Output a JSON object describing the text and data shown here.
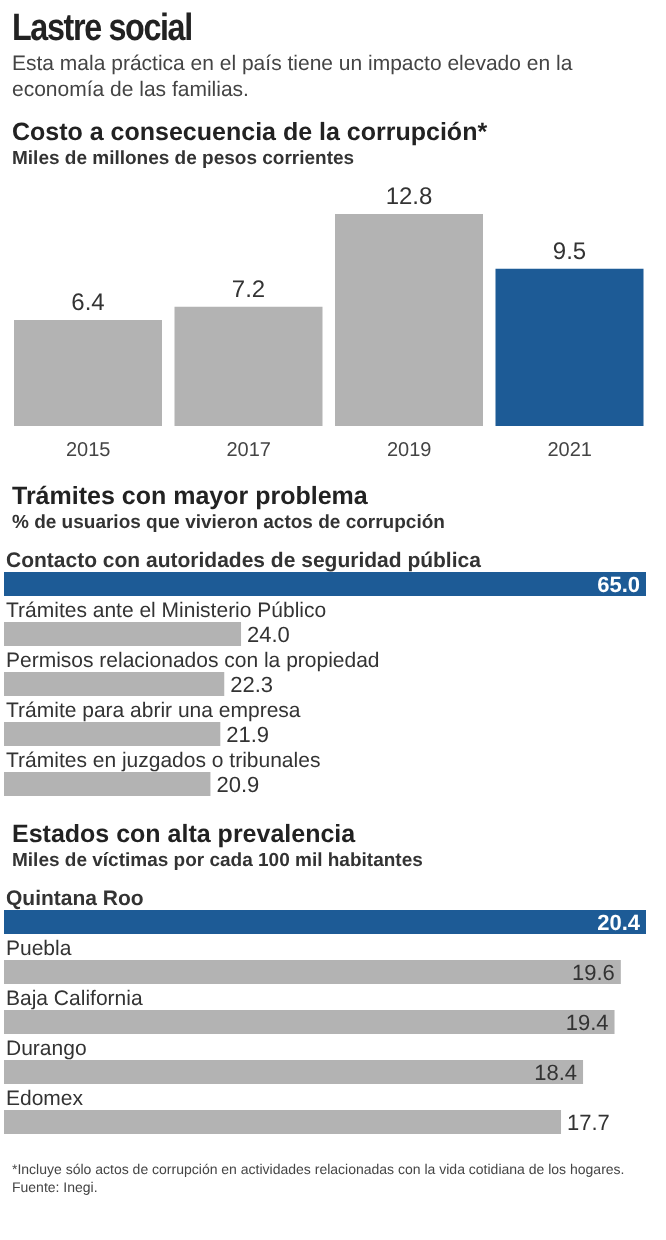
{
  "chart_data": [
    {
      "type": "bar",
      "title": "Costo a consecuencia de la corrupción*",
      "subtitle": "Miles de millones de pesos corrientes",
      "annotations": [
        "Lastre social",
        "Esta mala práctica en el país tiene un impacto elevado en la economía de las familias."
      ],
      "categories": [
        "2015",
        "2017",
        "2019",
        "2021"
      ],
      "values": [
        6.4,
        7.2,
        12.8,
        9.5
      ],
      "colors": [
        "#b3b3b3",
        "#b3b3b3",
        "#b3b3b3",
        "#1d5b96"
      ],
      "data_labels": true
    },
    {
      "type": "bar",
      "orientation": "horizontal",
      "title": "Trámites con mayor problema",
      "subtitle": "% de usuarios que vivieron actos de corrupción",
      "categories": [
        "Contacto con autoridades de seguridad pública",
        "Trámites ante el Ministerio Público",
        "Permisos relacionados con la propiedad",
        "Trámite para abrir una empresa",
        "Trámites en juzgados o tribunales"
      ],
      "values": [
        65.0,
        24.0,
        22.3,
        21.9,
        20.9
      ],
      "value_labels": [
        "65.0",
        "24.0",
        "22.3",
        "21.9",
        "20.9"
      ],
      "colors": [
        "#1d5b96",
        "#b3b3b3",
        "#b3b3b3",
        "#b3b3b3",
        "#b3b3b3"
      ]
    },
    {
      "type": "bar",
      "orientation": "horizontal",
      "title": "Estados con alta prevalencia",
      "subtitle": "Miles de víctimas por cada 100 mil habitantes",
      "categories": [
        "Quintana Roo",
        "Puebla",
        "Baja California",
        "Durango",
        "Edomex"
      ],
      "values": [
        20.4,
        19.6,
        19.4,
        18.4,
        17.7
      ],
      "value_labels": [
        "20.4",
        "19.6",
        "19.4",
        "18.4",
        "17.7"
      ],
      "colors": [
        "#1d5b96",
        "#b3b3b3",
        "#b3b3b3",
        "#b3b3b3",
        "#b3b3b3"
      ],
      "annotations": [
        "*Incluye sólo actos de corrupción en actividades relacionadas con la vida cotidiana de los hogares.",
        "Fuente: Inegi."
      ]
    }
  ]
}
